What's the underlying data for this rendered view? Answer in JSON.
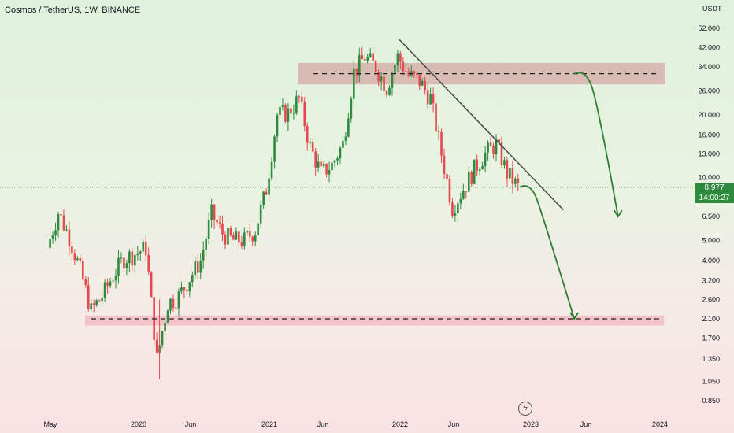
{
  "header": {
    "title": "Cosmos / TetherUS, 1W, BINANCE"
  },
  "price_axis": {
    "currency": "USDT"
  },
  "last_price": {
    "value": "8.977",
    "countdown": "14:00:27",
    "color": "#2e8b3e"
  },
  "colors": {
    "up": "#2e8b3e",
    "down": "#e5484d",
    "resistance_zone": "#d4a8a3",
    "support_zone": "#f3b9c3",
    "trendline": "#4a4a4a",
    "projection": "#2e7d32"
  },
  "chart_data": {
    "type": "candlestick",
    "title": "Cosmos / TetherUS, 1W, BINANCE",
    "y_scale": "log",
    "ylim": [
      0.78,
      60
    ],
    "y_ticks": [
      "52.000",
      "42.000",
      "34.000",
      "26.000",
      "20.000",
      "16.000",
      "13.000",
      "10.000",
      "6.500",
      "5.000",
      "4.000",
      "3.200",
      "2.600",
      "2.100",
      "1.700",
      "1.350",
      "1.050",
      "0.850"
    ],
    "x_ticks": [
      "May",
      "2020",
      "Jun",
      "2021",
      "Jun",
      "2022",
      "Jun",
      "2023",
      "Jun",
      "2024"
    ],
    "price_path": [
      [
        "2019-05",
        4.6
      ],
      [
        "2019-06",
        6.8
      ],
      [
        "2019-07",
        5.2
      ],
      [
        "2019-08",
        3.6
      ],
      [
        "2019-09",
        2.3
      ],
      [
        "2019-10",
        2.7
      ],
      [
        "2019-11",
        3.4
      ],
      [
        "2019-12",
        4.1
      ],
      [
        "2020-01",
        4.3
      ],
      [
        "2020-02",
        4.6
      ],
      [
        "2020-03",
        1.35
      ],
      [
        "2020-04",
        2.5
      ],
      [
        "2020-05",
        2.7
      ],
      [
        "2020-06",
        3.3
      ],
      [
        "2020-07",
        4.0
      ],
      [
        "2020-08",
        6.7
      ],
      [
        "2020-09",
        5.4
      ],
      [
        "2020-10",
        5.0
      ],
      [
        "2020-11",
        5.0
      ],
      [
        "2020-12",
        5.6
      ],
      [
        "2021-01",
        8.8
      ],
      [
        "2021-02",
        20.0
      ],
      [
        "2021-03",
        20.5
      ],
      [
        "2021-04",
        24.0
      ],
      [
        "2021-05",
        14.0
      ],
      [
        "2021-06",
        10.5
      ],
      [
        "2021-07",
        11.5
      ],
      [
        "2021-08",
        14.5
      ],
      [
        "2021-09",
        32.0
      ],
      [
        "2021-10",
        38.0
      ],
      [
        "2021-11",
        34.0
      ],
      [
        "2021-12",
        27.0
      ],
      [
        "2022-01",
        38.0
      ],
      [
        "2022-02",
        31.0
      ],
      [
        "2022-03",
        29.0
      ],
      [
        "2022-04",
        24.0
      ],
      [
        "2022-05",
        13.0
      ],
      [
        "2022-06",
        7.2
      ],
      [
        "2022-07",
        8.8
      ],
      [
        "2022-08",
        11.0
      ],
      [
        "2022-09",
        13.0
      ],
      [
        "2022-10",
        14.5
      ],
      [
        "2022-11",
        10.5
      ],
      [
        "2022-12",
        8.98
      ]
    ],
    "annotations": {
      "resistance_zone": [
        28.0,
        35.5
      ],
      "resistance_line": 31.5,
      "support_zone": [
        1.95,
        2.18
      ],
      "support_line": 2.1,
      "trendline": [
        [
          "2022-01",
          46.0
        ],
        [
          "2023-04",
          7.0
        ]
      ],
      "projection_near": [
        [
          "2022-12",
          9.0
        ],
        [
          "2023-01",
          8.6
        ],
        [
          "2023-05",
          2.1
        ]
      ],
      "projection_far": [
        [
          "2023-05",
          31.5
        ],
        [
          "2023-06",
          30.0
        ],
        [
          "2023-09",
          6.5
        ]
      ]
    }
  }
}
